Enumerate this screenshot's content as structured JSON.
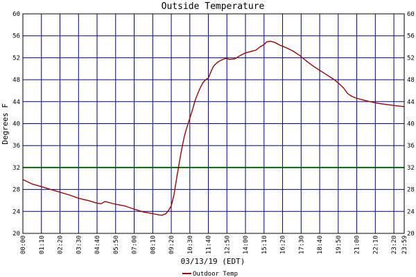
{
  "chart_data": {
    "type": "line",
    "title": "Outside Temperature",
    "xlabel": "03/13/19 (EDT)",
    "ylabel": "Degrees F",
    "ylim": [
      20,
      60
    ],
    "yticks": [
      20,
      24,
      28,
      32,
      36,
      40,
      44,
      48,
      52,
      56,
      60
    ],
    "x_tick_labels": [
      "00:00",
      "01:10",
      "02:20",
      "03:30",
      "04:40",
      "05:50",
      "07:00",
      "08:10",
      "09:20",
      "10:30",
      "11:40",
      "12:50",
      "14:00",
      "15:10",
      "16:20",
      "17:30",
      "18:40",
      "19:50",
      "21:00",
      "22:10",
      "23:20",
      "23:59"
    ],
    "x_unit": "minutes since 00:00",
    "x_range": [
      0,
      1439
    ],
    "grid": true,
    "legend_position": "bottom-center",
    "reference_line": {
      "y": 32,
      "color": "#006400"
    },
    "series": [
      {
        "name": "Outdoor Temp",
        "color": "#990000",
        "points": [
          [
            0,
            29.8
          ],
          [
            35,
            29.0
          ],
          [
            70,
            28.5
          ],
          [
            105,
            28.0
          ],
          [
            140,
            27.5
          ],
          [
            175,
            27.0
          ],
          [
            210,
            26.4
          ],
          [
            245,
            26.0
          ],
          [
            280,
            25.5
          ],
          [
            295,
            25.4
          ],
          [
            310,
            25.8
          ],
          [
            350,
            25.3
          ],
          [
            385,
            25.0
          ],
          [
            420,
            24.4
          ],
          [
            455,
            23.9
          ],
          [
            490,
            23.6
          ],
          [
            510,
            23.4
          ],
          [
            525,
            23.3
          ],
          [
            540,
            23.6
          ],
          [
            550,
            24.2
          ],
          [
            560,
            25.0
          ],
          [
            570,
            27.0
          ],
          [
            580,
            30.0
          ],
          [
            590,
            32.8
          ],
          [
            600,
            35.5
          ],
          [
            610,
            37.8
          ],
          [
            620,
            39.5
          ],
          [
            630,
            41.0
          ],
          [
            640,
            42.5
          ],
          [
            650,
            44.2
          ],
          [
            660,
            45.5
          ],
          [
            670,
            46.6
          ],
          [
            680,
            47.5
          ],
          [
            690,
            48.0
          ],
          [
            700,
            48.3
          ],
          [
            710,
            49.5
          ],
          [
            720,
            50.5
          ],
          [
            735,
            51.2
          ],
          [
            750,
            51.6
          ],
          [
            765,
            51.9
          ],
          [
            780,
            51.7
          ],
          [
            800,
            51.8
          ],
          [
            820,
            52.4
          ],
          [
            840,
            52.9
          ],
          [
            865,
            53.2
          ],
          [
            880,
            53.4
          ],
          [
            895,
            54.0
          ],
          [
            910,
            54.4
          ],
          [
            920,
            54.9
          ],
          [
            935,
            55.0
          ],
          [
            950,
            54.8
          ],
          [
            970,
            54.3
          ],
          [
            995,
            53.8
          ],
          [
            1020,
            53.2
          ],
          [
            1045,
            52.4
          ],
          [
            1070,
            51.4
          ],
          [
            1095,
            50.5
          ],
          [
            1120,
            49.7
          ],
          [
            1150,
            48.8
          ],
          [
            1175,
            48.0
          ],
          [
            1195,
            47.2
          ],
          [
            1210,
            46.5
          ],
          [
            1225,
            45.5
          ],
          [
            1240,
            45.0
          ],
          [
            1260,
            44.6
          ],
          [
            1285,
            44.3
          ],
          [
            1310,
            44.0
          ],
          [
            1340,
            43.7
          ],
          [
            1370,
            43.5
          ],
          [
            1400,
            43.3
          ],
          [
            1439,
            43.1
          ]
        ]
      }
    ]
  }
}
